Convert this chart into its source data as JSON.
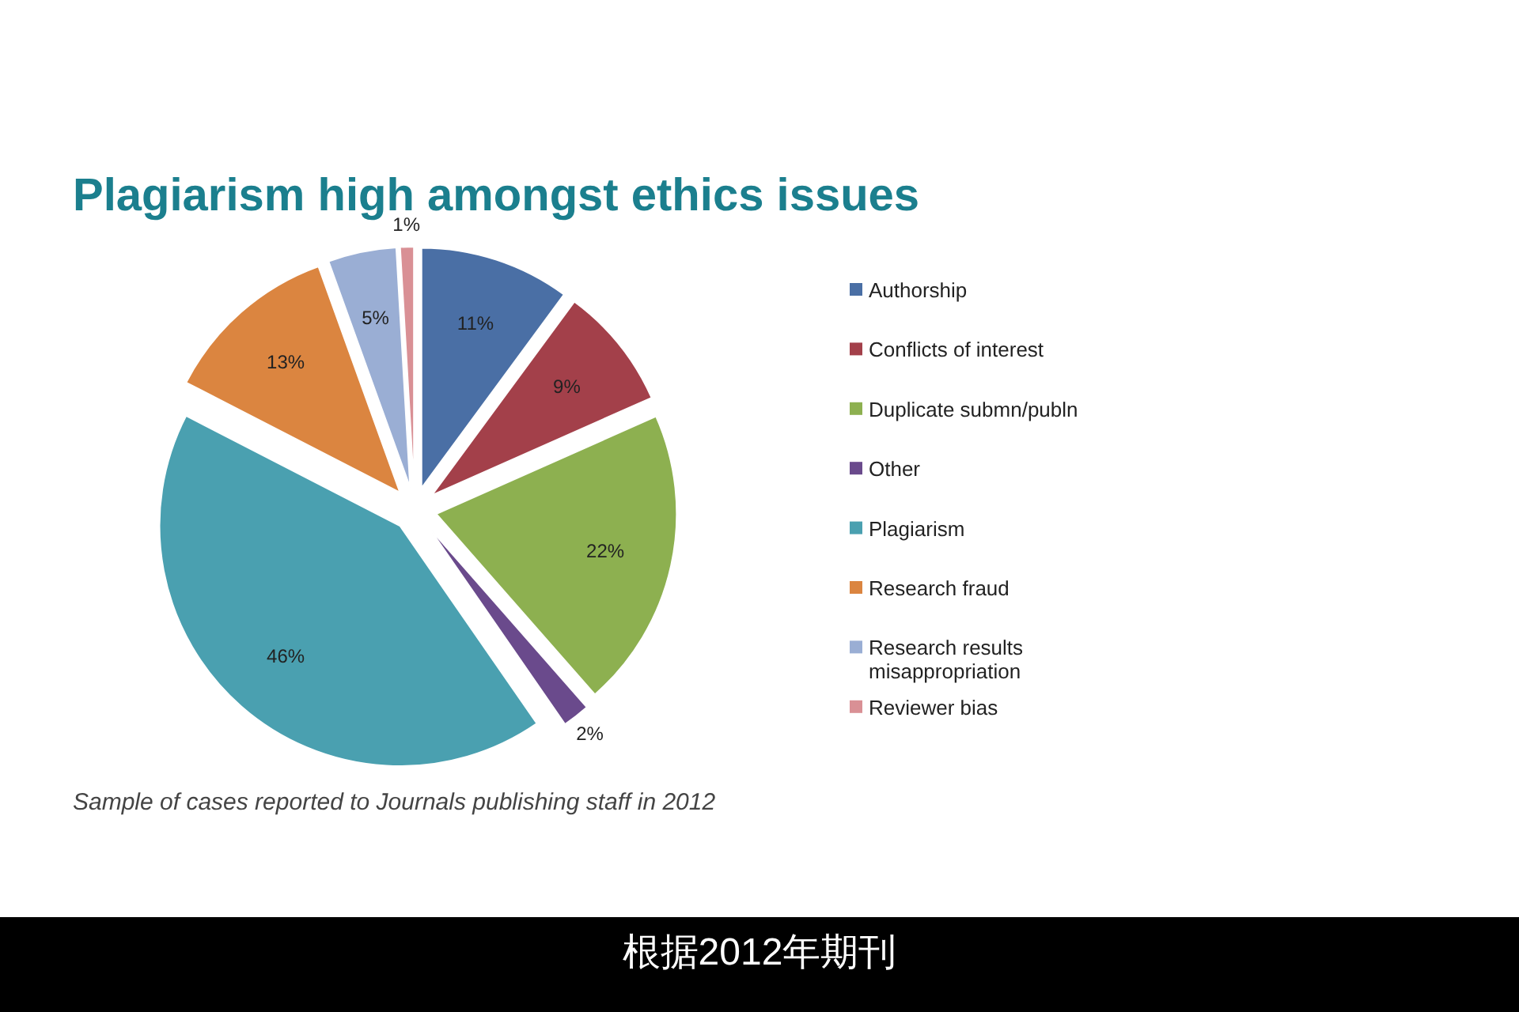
{
  "chart_data": {
    "type": "pie",
    "title": "Plagiarism high amongst ethics issues",
    "categories": [
      "Authorship",
      "Conflicts of interest",
      "Duplicate submn/publn",
      "Other",
      "Plagiarism",
      "Research fraud",
      "Research results misappropriation",
      "Reviewer bias"
    ],
    "values": [
      11,
      9,
      22,
      2,
      46,
      13,
      5,
      1
    ],
    "value_labels": [
      "11%",
      "9%",
      "22%",
      "2%",
      "46%",
      "13%",
      "5%",
      "1%"
    ],
    "colors": [
      "#4a6fa5",
      "#a3404a",
      "#8db050",
      "#6a4a8c",
      "#4aa0b0",
      "#db8540",
      "#9aaed4",
      "#d99095"
    ],
    "legend": "right",
    "annotations": [
      "Sample of cases reported to Journals publishing staff in 2012",
      "根据2012年期刊"
    ]
  }
}
